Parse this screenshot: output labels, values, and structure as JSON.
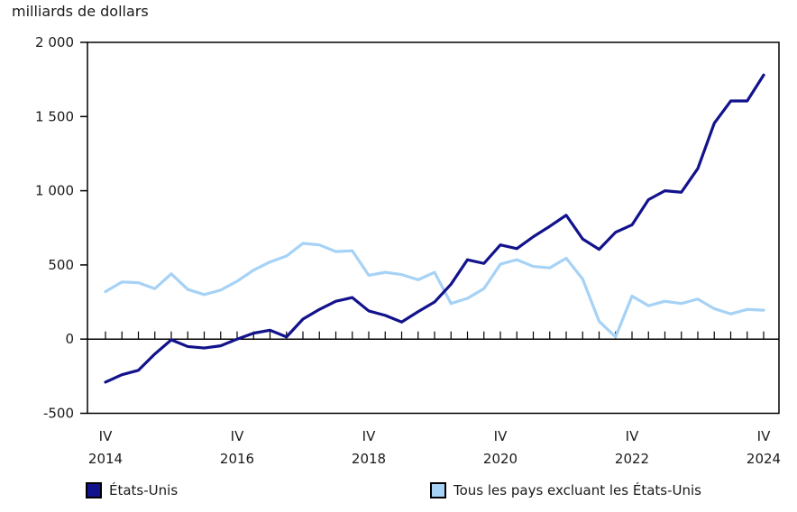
{
  "chart_data": {
    "type": "line",
    "title": "milliards de dollars",
    "ylabel": "milliards de dollars",
    "xlabel": "",
    "ylim": [
      -500,
      2000
    ],
    "grid": false,
    "legend_position": "bottom",
    "colors": {
      "axis": "#000000",
      "text": "#1a1a1a",
      "series_us": "#12128c",
      "series_others": "#a6d2f6"
    },
    "y_ticks": [
      {
        "value": 2000,
        "label": "2 000"
      },
      {
        "value": 1500,
        "label": "1 500"
      },
      {
        "value": 1000,
        "label": "1 000"
      },
      {
        "value": 500,
        "label": "500"
      },
      {
        "value": 0,
        "label": "0"
      },
      {
        "value": -500,
        "label": "-500"
      }
    ],
    "x_ticks": [
      {
        "index": 0,
        "quarter": "IV",
        "year": "2014"
      },
      {
        "index": 8,
        "quarter": "IV",
        "year": "2016"
      },
      {
        "index": 16,
        "quarter": "IV",
        "year": "2018"
      },
      {
        "index": 24,
        "quarter": "IV",
        "year": "2020"
      },
      {
        "index": 32,
        "quarter": "IV",
        "year": "2022"
      },
      {
        "index": 40,
        "quarter": "IV",
        "year": "2024"
      }
    ],
    "quarters": [
      "IV 2014",
      "I 2015",
      "II 2015",
      "III 2015",
      "IV 2015",
      "I 2016",
      "II 2016",
      "III 2016",
      "IV 2016",
      "I 2017",
      "II 2017",
      "III 2017",
      "IV 2017",
      "I 2018",
      "II 2018",
      "III 2018",
      "IV 2018",
      "I 2019",
      "II 2019",
      "III 2019",
      "IV 2019",
      "I 2020",
      "II 2020",
      "III 2020",
      "IV 2020",
      "I 2021",
      "II 2021",
      "III 2021",
      "IV 2021",
      "I 2022",
      "II 2022",
      "III 2022",
      "IV 2022",
      "I 2023",
      "II 2023",
      "III 2023",
      "IV 2023",
      "I 2024",
      "II 2024",
      "III 2024",
      "IV 2024"
    ],
    "series": [
      {
        "id": "us",
        "name": "États-Unis",
        "color": "#12128c",
        "values": [
          -290,
          -240,
          -210,
          -100,
          -5,
          -50,
          -60,
          -45,
          0,
          40,
          60,
          15,
          135,
          200,
          255,
          280,
          190,
          160,
          115,
          185,
          250,
          370,
          535,
          510,
          635,
          610,
          690,
          760,
          835,
          675,
          605,
          720,
          770,
          940,
          1000,
          990,
          1150,
          1455,
          1605,
          1605,
          1780
        ]
      },
      {
        "id": "others",
        "name": "Tous les pays excluant les États-Unis",
        "color": "#a6d2f6",
        "values": [
          320,
          385,
          380,
          340,
          440,
          335,
          300,
          330,
          390,
          465,
          520,
          560,
          645,
          635,
          590,
          595,
          430,
          450,
          435,
          400,
          450,
          240,
          275,
          340,
          505,
          535,
          490,
          480,
          545,
          405,
          120,
          15,
          290,
          225,
          255,
          240,
          270,
          205,
          170,
          200,
          195
        ]
      }
    ]
  },
  "legend": {
    "items": [
      {
        "label": "États-Unis",
        "series_id": "us"
      },
      {
        "label": "Tous les pays excluant les États-Unis",
        "series_id": "others"
      }
    ]
  }
}
